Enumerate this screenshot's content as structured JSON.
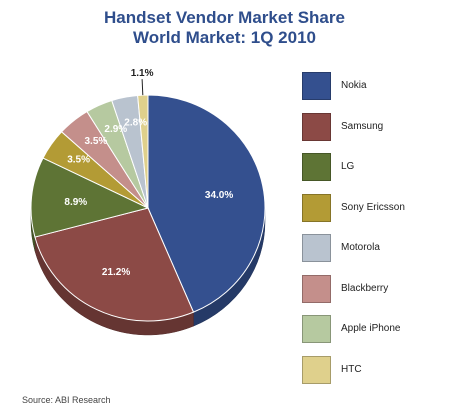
{
  "chart_data": {
    "type": "pie",
    "title": [
      "Handset Vendor Market Share",
      "World Market: 1Q 2010"
    ],
    "categories": [
      "Nokia",
      "Samsung",
      "LG",
      "Sony Ericsson",
      "Motorola",
      "Blackberry",
      "Apple iPhone",
      "HTC"
    ],
    "values": [
      34.0,
      21.2,
      8.9,
      3.5,
      2.8,
      3.5,
      2.9,
      1.1
    ],
    "value_labels": [
      "34.0%",
      "21.2%",
      "8.9%",
      "3.5%",
      "2.8%",
      "3.5%",
      "2.9%",
      "1.1%"
    ],
    "colors": [
      "#34508f",
      "#8c4a46",
      "#5e7435",
      "#b39b35",
      "#b9c3cf",
      "#c48f8b",
      "#b6c9a0",
      "#dfd08c"
    ],
    "slice_order": [
      0,
      1,
      2,
      3,
      5,
      6,
      4,
      7
    ],
    "legend_placement": "right",
    "source": "Source: ABI Research"
  }
}
